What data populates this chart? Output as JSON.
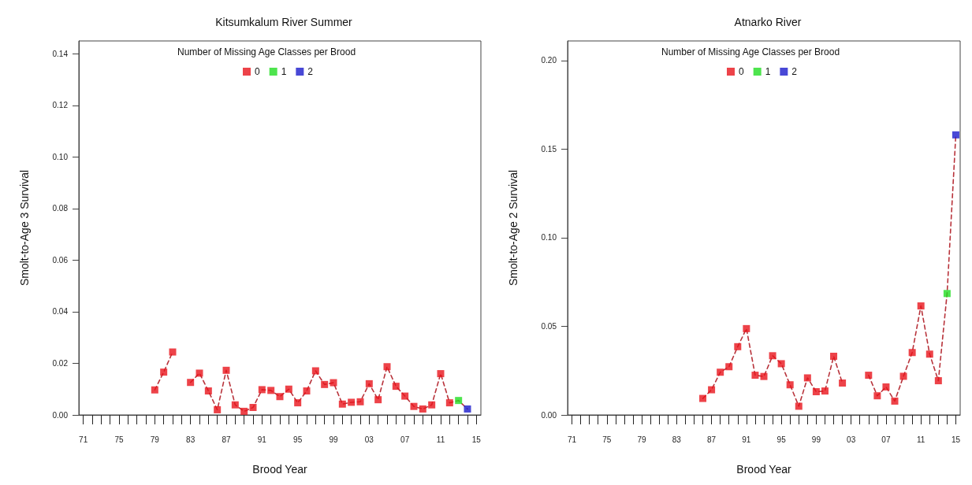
{
  "chart_data": [
    {
      "type": "line",
      "title": "Kitsumkalum River Summer",
      "xlabel": "Brood Year",
      "ylabel": "Smolt-to-Age 3 Survival",
      "legend_title": "Number of Missing Age Classes per Brood",
      "legend": "top",
      "marker": "square",
      "categories": [
        "71",
        null,
        null,
        null,
        "75",
        null,
        null,
        null,
        "79",
        null,
        null,
        null,
        "83",
        null,
        null,
        null,
        "87",
        null,
        null,
        null,
        "91",
        null,
        null,
        null,
        "95",
        null,
        null,
        null,
        "99",
        null,
        null,
        null,
        "03",
        null,
        null,
        null,
        "07",
        null,
        null,
        null,
        "11",
        null,
        null,
        null,
        "15"
      ],
      "ylim": [
        0,
        0.145
      ],
      "yticks": [
        {
          "value": 0,
          "label": "0.00"
        },
        {
          "value": 0.02,
          "label": "0.02"
        },
        {
          "value": 0.04,
          "label": "0.04"
        },
        {
          "value": 0.06,
          "label": "0.06"
        },
        {
          "value": 0.08,
          "label": "0.08"
        },
        {
          "value": 0.1,
          "label": "0.10"
        },
        {
          "value": 0.12,
          "label": "0.12"
        },
        {
          "value": 0.14,
          "label": "0.14"
        }
      ],
      "series": [
        {
          "color": "#b8333b",
          "line_style": "dashed",
          "marker": "none",
          "values": [
            null,
            null,
            null,
            null,
            null,
            null,
            null,
            null,
            0.0097,
            0.0166,
            0.0244,
            null,
            0.0126,
            0.0162,
            0.0093,
            0.002,
            0.0173,
            0.0039,
            0.0014,
            0.0029,
            0.0098,
            0.0095,
            0.0071,
            0.01,
            0.0047,
            0.0093,
            0.0171,
            0.0118,
            0.0125,
            0.0042,
            0.0049,
            0.0051,
            0.0121,
            0.0059,
            0.0187,
            0.0111,
            0.0073,
            0.0033,
            0.0023,
            0.0039,
            0.016,
            0.0047,
            0.0056,
            0.0023,
            null
          ]
        },
        {
          "type": "scatter",
          "name": "0",
          "color": "#e8141c",
          "values": [
            null,
            null,
            null,
            null,
            null,
            null,
            null,
            null,
            0.0097,
            0.0166,
            0.0244,
            null,
            0.0126,
            0.0162,
            0.0093,
            0.002,
            0.0173,
            0.0039,
            0.0014,
            0.0029,
            0.0098,
            0.0095,
            0.0071,
            0.01,
            0.0047,
            0.0093,
            0.0171,
            0.0118,
            0.0125,
            0.0042,
            0.0049,
            0.0051,
            0.0121,
            0.0059,
            0.0187,
            0.0111,
            0.0073,
            0.0033,
            0.0023,
            0.0039,
            0.016,
            0.0047,
            null,
            null,
            null
          ]
        },
        {
          "type": "scatter",
          "name": "1",
          "color": "#22dd22",
          "values": [
            null,
            null,
            null,
            null,
            null,
            null,
            null,
            null,
            null,
            null,
            null,
            null,
            null,
            null,
            null,
            null,
            null,
            null,
            null,
            null,
            null,
            null,
            null,
            null,
            null,
            null,
            null,
            null,
            null,
            null,
            null,
            null,
            null,
            null,
            null,
            null,
            null,
            null,
            null,
            null,
            null,
            null,
            0.0056,
            null,
            null
          ]
        },
        {
          "type": "scatter",
          "name": "2",
          "color": "#1a1acc",
          "values": [
            null,
            null,
            null,
            null,
            null,
            null,
            null,
            null,
            null,
            null,
            null,
            null,
            null,
            null,
            null,
            null,
            null,
            null,
            null,
            null,
            null,
            null,
            null,
            null,
            null,
            null,
            null,
            null,
            null,
            null,
            null,
            null,
            null,
            null,
            null,
            null,
            null,
            null,
            null,
            null,
            null,
            null,
            null,
            0.0023,
            null
          ]
        }
      ]
    },
    {
      "type": "line",
      "title": "Atnarko River",
      "xlabel": "Brood Year",
      "ylabel": "Smolt-to-Age 2 Survival",
      "legend_title": "Number of Missing Age Classes per Brood",
      "legend": "top",
      "marker": "square",
      "categories": [
        "71",
        null,
        null,
        null,
        "75",
        null,
        null,
        null,
        "79",
        null,
        null,
        null,
        "83",
        null,
        null,
        null,
        "87",
        null,
        null,
        null,
        "91",
        null,
        null,
        null,
        "95",
        null,
        null,
        null,
        "99",
        null,
        null,
        null,
        "03",
        null,
        null,
        null,
        "07",
        null,
        null,
        null,
        "11",
        null,
        null,
        null,
        "15"
      ],
      "ylim": [
        0,
        0.211
      ],
      "yticks": [
        {
          "value": 0,
          "label": "0.00"
        },
        0.05,
        {
          "value": 0.1,
          "label": "0.10"
        },
        0.15,
        {
          "value": 0.2,
          "label": "0.20"
        }
      ],
      "series": [
        {
          "color": "#b8333b",
          "line_style": "dashed",
          "marker": "none",
          "values": [
            null,
            null,
            null,
            null,
            null,
            null,
            null,
            null,
            null,
            null,
            null,
            null,
            null,
            null,
            null,
            0.0093,
            0.0142,
            0.0241,
            0.0272,
            0.0385,
            0.0487,
            0.0224,
            0.0217,
            0.0334,
            0.0289,
            0.017,
            0.0049,
            0.0209,
            0.0131,
            0.0135,
            0.0331,
            0.018,
            null,
            null,
            0.0224,
            0.0108,
            0.0158,
            0.0078,
            0.0218,
            0.0352,
            0.0615,
            0.0343,
            0.0193,
            0.0685,
            0.158
          ]
        },
        {
          "type": "scatter",
          "name": "0",
          "color": "#e8141c",
          "values": [
            null,
            null,
            null,
            null,
            null,
            null,
            null,
            null,
            null,
            null,
            null,
            null,
            null,
            null,
            null,
            0.0093,
            0.0142,
            0.0241,
            0.0272,
            0.0385,
            0.0487,
            0.0224,
            0.0217,
            0.0334,
            0.0289,
            0.017,
            0.0049,
            0.0209,
            0.0131,
            0.0135,
            0.0331,
            0.018,
            null,
            null,
            0.0224,
            0.0108,
            0.0158,
            0.0078,
            0.0218,
            0.0352,
            0.0615,
            0.0343,
            0.0193,
            null,
            null
          ]
        },
        {
          "type": "scatter",
          "name": "1",
          "color": "#22dd22",
          "values": [
            null,
            null,
            null,
            null,
            null,
            null,
            null,
            null,
            null,
            null,
            null,
            null,
            null,
            null,
            null,
            null,
            null,
            null,
            null,
            null,
            null,
            null,
            null,
            null,
            null,
            null,
            null,
            null,
            null,
            null,
            null,
            null,
            null,
            null,
            null,
            null,
            null,
            null,
            null,
            null,
            null,
            null,
            null,
            0.0685,
            null
          ]
        },
        {
          "type": "scatter",
          "name": "2",
          "color": "#1a1acc",
          "values": [
            null,
            null,
            null,
            null,
            null,
            null,
            null,
            null,
            null,
            null,
            null,
            null,
            null,
            null,
            null,
            null,
            null,
            null,
            null,
            null,
            null,
            null,
            null,
            null,
            null,
            null,
            null,
            null,
            null,
            null,
            null,
            null,
            null,
            null,
            null,
            null,
            null,
            null,
            null,
            null,
            null,
            null,
            null,
            null,
            0.158
          ]
        }
      ]
    }
  ]
}
